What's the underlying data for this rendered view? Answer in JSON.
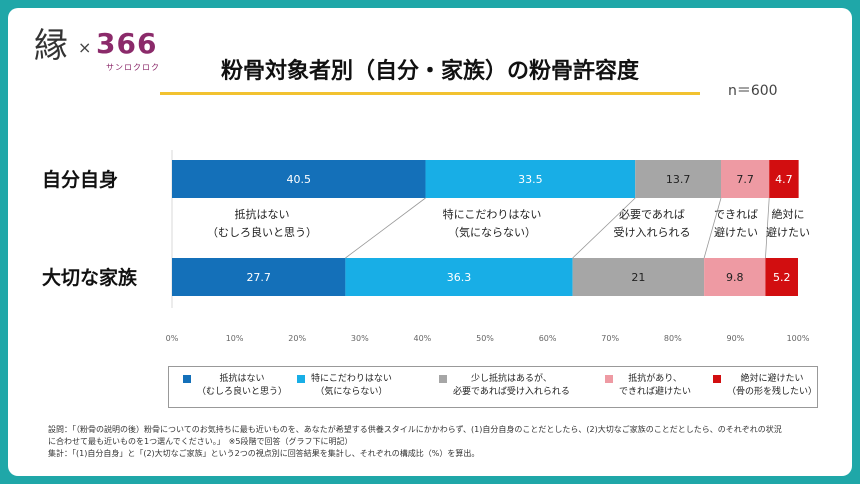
{
  "logo": {
    "kanji": "縁",
    "x": "×",
    "num": "366",
    "kana": "サンロクロク"
  },
  "title": "粉骨対象者別（自分・家族）の粉骨許容度",
  "n_label": "n＝600",
  "chart_data": {
    "type": "bar",
    "orientation": "horizontal",
    "stacked": true,
    "categories": [
      "自分自身",
      "大切な家族"
    ],
    "series": [
      {
        "name": "抵抗はない（むしろ良いと思う）",
        "color": "#1470b9",
        "values": [
          40.5,
          27.7
        ]
      },
      {
        "name": "特にこだわりはない（気にならない）",
        "color": "#18aee6",
        "values": [
          33.5,
          36.3
        ]
      },
      {
        "name": "少し抵抗はあるが、必要であれば受け入れられる",
        "color": "#a6a6a6",
        "values": [
          13.7,
          21
        ]
      },
      {
        "name": "抵抗があり、できれば避けたい",
        "color": "#ee9aa3",
        "values": [
          7.7,
          9.8
        ]
      },
      {
        "name": "絶対に避けたい（骨の形を残したい）",
        "color": "#d20e10",
        "values": [
          4.7,
          5.2
        ]
      }
    ],
    "value_labels": [
      [
        "40.5",
        "33.5",
        "13.7",
        "7.7",
        "4.7"
      ],
      [
        "27.7",
        "36.3",
        "21",
        "9.8",
        "5.2"
      ]
    ],
    "xlim": [
      0,
      100
    ],
    "xticks": [
      "0%",
      "10%",
      "20%",
      "30%",
      "40%",
      "50%",
      "60%",
      "70%",
      "80%",
      "90%",
      "100%"
    ],
    "annotations": [
      [
        "抵抗はない",
        "（むしろ良いと思う）"
      ],
      [
        "特にこだわりはない",
        "（気にならない）"
      ],
      [
        "必要であれば",
        "受け入れられる"
      ],
      [
        "できれば",
        "避けたい"
      ],
      [
        "絶対に",
        "避けたい"
      ]
    ],
    "legend": [
      [
        "抵抗はない",
        "（むしろ良いと思う）"
      ],
      [
        "特にこだわりはない",
        "（気にならない）"
      ],
      [
        "少し抵抗はあるが、",
        "必要であれば受け入れられる"
      ],
      [
        "抵抗があり、",
        "できれば避けたい"
      ],
      [
        "絶対に避けたい",
        "（骨の形を残したい）"
      ]
    ],
    "legend_position": "bottom"
  },
  "footnote": {
    "line1": "設問：「（粉骨の説明の後）粉骨についてのお気持ちに最も近いものを、あなたが希望する供養スタイルにかかわらず、(1)自分自身のことだとしたら、(2)大切なご家族のことだとしたら、のそれぞれの状況",
    "line2": "に合わせて最も近いものを1つ選んでください。」　※5段階で回答（グラフ下に明記）",
    "line3": "集計：「(1)自分自身」と「(2)大切なご家族」という2つの視点別に回答結果を集計し、それぞれの構成比（%）を算出。"
  }
}
